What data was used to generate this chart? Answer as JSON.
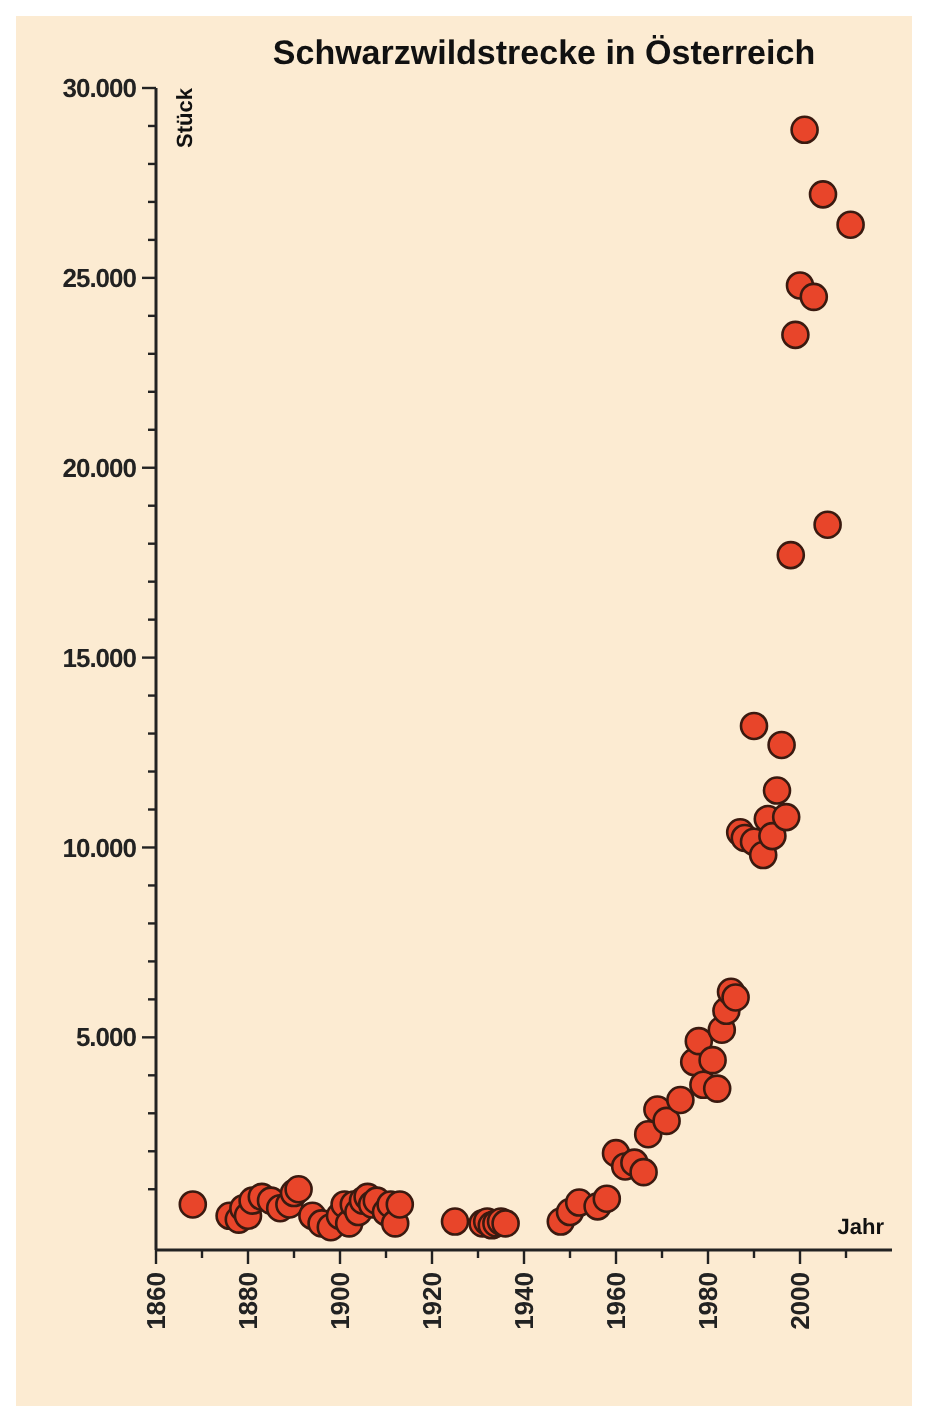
{
  "chart_data": {
    "type": "scatter",
    "title": "Schwarzwildstrecke in Österreich",
    "xlabel": "Jahr",
    "ylabel": "Stück",
    "x": [
      1868,
      1876,
      1878,
      1879,
      1880,
      1881,
      1883,
      1885,
      1887,
      1889,
      1890,
      1891,
      1894,
      1896,
      1898,
      1900,
      1901,
      1902,
      1903,
      1904,
      1905,
      1906,
      1907,
      1908,
      1910,
      1911,
      1912,
      1913,
      1925,
      1931,
      1932,
      1933,
      1934,
      1935,
      1936,
      1948,
      1950,
      1952,
      1956,
      1958,
      1960,
      1962,
      1964,
      1966,
      1967,
      1969,
      1971,
      1974,
      1977,
      1978,
      1979,
      1981,
      1982,
      1983,
      1984,
      1985,
      1986,
      1987,
      1988,
      1990,
      1990,
      1992,
      1993,
      1994,
      1995,
      1996,
      1997,
      1998,
      1999,
      2000,
      2001,
      2003,
      2005,
      2006,
      2011
    ],
    "series": [
      {
        "color": "#e8452a",
        "values": [
          600,
          300,
          200,
          500,
          300,
          700,
          800,
          700,
          500,
          600,
          900,
          1000,
          300,
          100,
          0,
          300,
          600,
          100,
          600,
          400,
          700,
          800,
          600,
          700,
          400,
          600,
          100,
          600,
          150,
          100,
          150,
          50,
          100,
          150,
          100,
          150,
          400,
          650,
          550,
          750,
          1950,
          1600,
          1700,
          1450,
          2450,
          3100,
          2800,
          3350,
          4350,
          4900,
          3750,
          4400,
          3650,
          5200,
          5700,
          6200,
          6050,
          10400,
          10250,
          10150,
          13200,
          9800,
          10750,
          10300,
          11500,
          12700,
          10800,
          17700,
          23500,
          24800,
          28900,
          24500,
          27200,
          18500,
          26400
        ]
      }
    ],
    "xlim": [
      1860,
      2020
    ],
    "xticks": [
      1860,
      {
        "value": 1870,
        "label": null
      },
      1880,
      {
        "value": 1890,
        "label": null
      },
      1900,
      {
        "value": 1910,
        "label": null
      },
      1920,
      {
        "value": 1930,
        "label": null
      },
      1940,
      {
        "value": 1950,
        "label": null
      },
      1960,
      {
        "value": 1970,
        "label": null
      },
      1980,
      {
        "value": 1990,
        "label": null
      },
      2000,
      {
        "value": 2010,
        "label": null
      }
    ],
    "ylim": [
      -600,
      30000
    ],
    "yticks": [
      {
        "value": 1000,
        "label": null
      },
      {
        "value": 2000,
        "label": null
      },
      {
        "value": 3000,
        "label": null
      },
      {
        "value": 4000,
        "label": null
      },
      {
        "value": 5000,
        "label": "5.000"
      },
      {
        "value": 6000,
        "label": null
      },
      {
        "value": 7000,
        "label": null
      },
      {
        "value": 8000,
        "label": null
      },
      {
        "value": 9000,
        "label": null
      },
      {
        "value": 10000,
        "label": "10.000"
      },
      {
        "value": 11000,
        "label": null
      },
      {
        "value": 12000,
        "label": null
      },
      {
        "value": 13000,
        "label": null
      },
      {
        "value": 14000,
        "label": null
      },
      {
        "value": 15000,
        "label": "15.000"
      },
      {
        "value": 16000,
        "label": null
      },
      {
        "value": 17000,
        "label": null
      },
      {
        "value": 18000,
        "label": null
      },
      {
        "value": 19000,
        "label": null
      },
      {
        "value": 20000,
        "label": "20.000"
      },
      {
        "value": 21000,
        "label": null
      },
      {
        "value": 22000,
        "label": null
      },
      {
        "value": 23000,
        "label": null
      },
      {
        "value": 24000,
        "label": null
      },
      {
        "value": 25000,
        "label": "25.000"
      },
      {
        "value": 26000,
        "label": null
      },
      {
        "value": 27000,
        "label": null
      },
      {
        "value": 28000,
        "label": null
      },
      {
        "value": 29000,
        "label": null
      },
      {
        "value": 30000,
        "label": "30.000"
      }
    ],
    "marker": "circle"
  }
}
